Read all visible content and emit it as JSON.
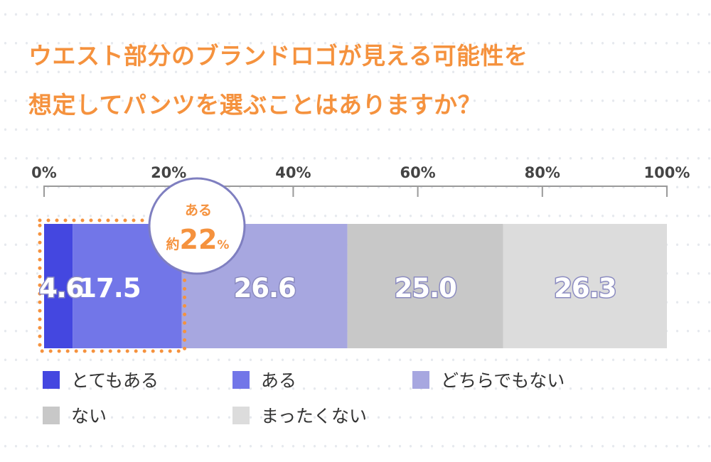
{
  "title_lines": [
    "ウエスト部分のブランドロゴが見える可能性を",
    "想定してパンツを選ぶことはありますか？"
  ],
  "chart_data": {
    "type": "bar",
    "orientation": "horizontal-stacked-100",
    "xlim": [
      0,
      100
    ],
    "x_ticks": [
      "0%",
      "20%",
      "40%",
      "60%",
      "80%",
      "100%"
    ],
    "series": [
      {
        "name": "とてもある",
        "value": 4.6,
        "label": "4.6",
        "color": "#4447e0"
      },
      {
        "name": "ある",
        "value": 17.5,
        "label": "17.5",
        "color": "#7276e8"
      },
      {
        "name": "どちらでもない",
        "value": 26.6,
        "label": "26.6",
        "color": "#a7a7e0"
      },
      {
        "name": "ない",
        "value": 25.0,
        "label": "25.0",
        "color": "#c8c8c8"
      },
      {
        "name": "まったくない",
        "value": 26.3,
        "label": "26.3",
        "color": "#dcdcdc"
      }
    ],
    "annotation": {
      "line1": "ある",
      "prefix": "約",
      "number": "22",
      "unit": "%",
      "highlight_color": "#f5923e",
      "bubble_border": "#7f7fc0"
    },
    "legend_placement": "bottom"
  }
}
